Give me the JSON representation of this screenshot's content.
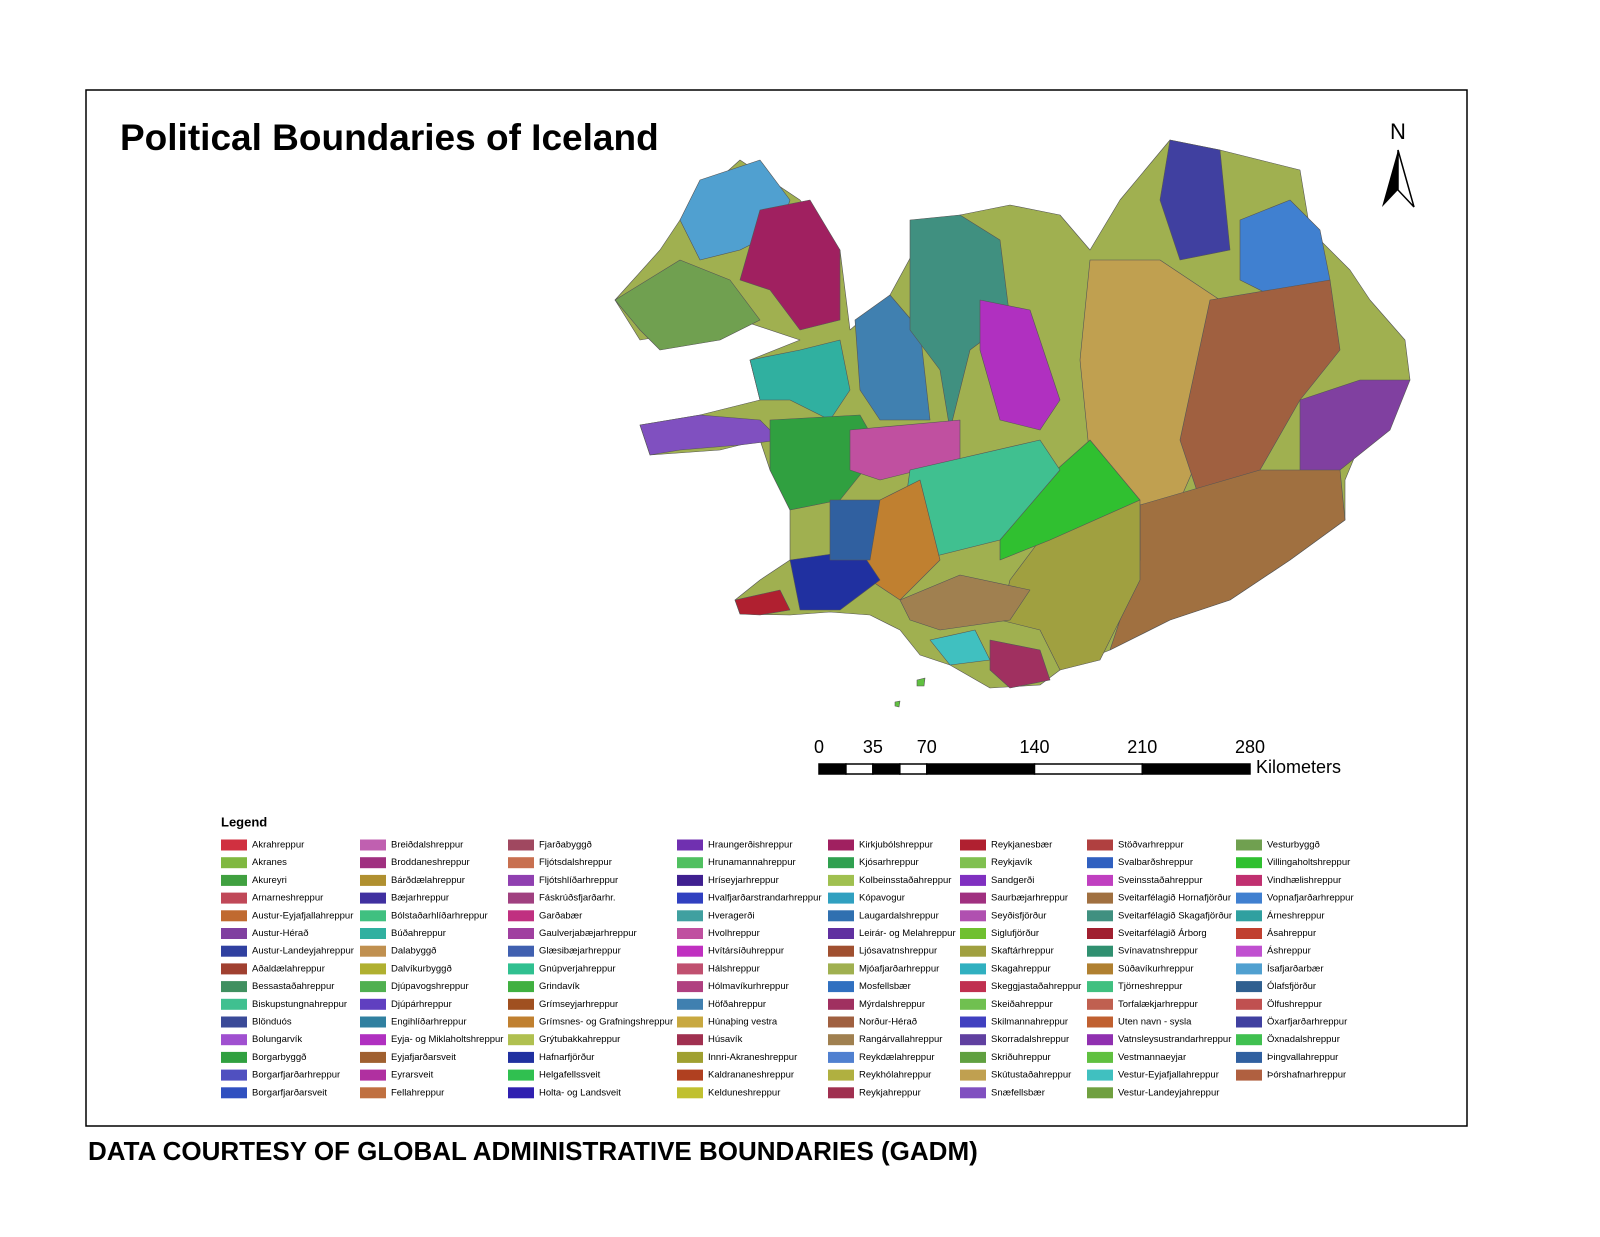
{
  "title": "Political Boundaries of Iceland",
  "north_label": "N",
  "scale_bar": {
    "ticks": [
      0,
      35,
      70,
      140,
      210,
      280
    ],
    "unit": "Kilometers"
  },
  "legend": {
    "title": "Legend",
    "items": [
      {
        "name": "Akrahreppur",
        "color": "#d03040"
      },
      {
        "name": "Akranes",
        "color": "#80b840"
      },
      {
        "name": "Akureyri",
        "color": "#40a040"
      },
      {
        "name": "Arnarneshreppur",
        "color": "#c04858"
      },
      {
        "name": "Austur-Eyjafjallahreppur",
        "color": "#c06a30"
      },
      {
        "name": "Austur-Hérað",
        "color": "#8040a0"
      },
      {
        "name": "Austur-Landeyjahreppur",
        "color": "#3040a0"
      },
      {
        "name": "Aðaldælahreppur",
        "color": "#a04030"
      },
      {
        "name": "Bessastaðahreppur",
        "color": "#409060"
      },
      {
        "name": "Biskupstungnahreppur",
        "color": "#40c090"
      },
      {
        "name": "Blönduós",
        "color": "#3a4a98"
      },
      {
        "name": "Bolungarvík",
        "color": "#a050d0"
      },
      {
        "name": "Borgarbyggð",
        "color": "#30a040"
      },
      {
        "name": "Borgarfjarðarhreppur",
        "color": "#5050c0"
      },
      {
        "name": "Borgarfjarðarsveit",
        "color": "#3050c0"
      },
      {
        "name": "Breiðdalshreppur",
        "color": "#c060b0"
      },
      {
        "name": "Broddaneshreppur",
        "color": "#a03080"
      },
      {
        "name": "Bárðdælahreppur",
        "color": "#b09030"
      },
      {
        "name": "Bæjarhreppur",
        "color": "#4030a0"
      },
      {
        "name": "Bólstaðarhlíðarhreppur",
        "color": "#40c080"
      },
      {
        "name": "Búðahreppur",
        "color": "#30b0a0"
      },
      {
        "name": "Dalabyggð",
        "color": "#c09050"
      },
      {
        "name": "Dalvíkurbyggð",
        "color": "#b0b030"
      },
      {
        "name": "Djúpavogshreppur",
        "color": "#50b050"
      },
      {
        "name": "Djúpárhreppur",
        "color": "#6040c0"
      },
      {
        "name": "Engihlíðarhreppur",
        "color": "#3080a0"
      },
      {
        "name": "Eyja- og Miklaholtshreppur",
        "color": "#b030c0"
      },
      {
        "name": "Eyjafjarðarsveit",
        "color": "#a06030"
      },
      {
        "name": "Eyrarsveit",
        "color": "#b030a0"
      },
      {
        "name": "Fellahreppur",
        "color": "#c07040"
      },
      {
        "name": "Fjarðabyggð",
        "color": "#a04860"
      },
      {
        "name": "Fljótsdalshreppur",
        "color": "#c87050"
      },
      {
        "name": "Fljótshlíðarhreppur",
        "color": "#9040b0"
      },
      {
        "name": "Fáskrúðsfjarðarhr.",
        "color": "#a04080"
      },
      {
        "name": "Garðabær",
        "color": "#c03080"
      },
      {
        "name": "Gaulverjabæjarhreppur",
        "color": "#a040a0"
      },
      {
        "name": "Glæsibæjarhreppur",
        "color": "#4060b0"
      },
      {
        "name": "Gnúpverjahreppur",
        "color": "#30c090"
      },
      {
        "name": "Grindavík",
        "color": "#40b040"
      },
      {
        "name": "Grímseyjarhreppur",
        "color": "#a05020"
      },
      {
        "name": "Grímsnes- og Grafningshreppur",
        "color": "#c08030"
      },
      {
        "name": "Grýtubakkahreppur",
        "color": "#b0c050"
      },
      {
        "name": "Hafnarfjörður",
        "color": "#2030a0"
      },
      {
        "name": "Helgafellssveit",
        "color": "#30c050"
      },
      {
        "name": "Holta- og Landsveit",
        "color": "#3020b0"
      },
      {
        "name": "Hraungerðishreppur",
        "color": "#7030b0"
      },
      {
        "name": "Hrunamannahreppur",
        "color": "#50c060"
      },
      {
        "name": "Hríseyjarhreppur",
        "color": "#402090"
      },
      {
        "name": "Hvalfjarðarstrandarhreppur",
        "color": "#3040c0"
      },
      {
        "name": "Hveragerði",
        "color": "#40a0a0"
      },
      {
        "name": "Hvolhreppur",
        "color": "#c050a0"
      },
      {
        "name": "Hvítársíðuhreppur",
        "color": "#c030c0"
      },
      {
        "name": "Hálshreppur",
        "color": "#c05070"
      },
      {
        "name": "Hólmavíkurhreppur",
        "color": "#b04080"
      },
      {
        "name": "Höfðahreppur",
        "color": "#4080b0"
      },
      {
        "name": "Húnaþing vestra",
        "color": "#c8a840"
      },
      {
        "name": "Húsavík",
        "color": "#a03050"
      },
      {
        "name": "Innri-Akraneshreppur",
        "color": "#a0a030"
      },
      {
        "name": "Kaldrananeshreppur",
        "color": "#b04020"
      },
      {
        "name": "Kelduneshreppur",
        "color": "#c0c030"
      },
      {
        "name": "Kirkjubólshreppur",
        "color": "#a02060"
      },
      {
        "name": "Kjósarhreppur",
        "color": "#30a050"
      },
      {
        "name": "Kolbeinsstaðahreppur",
        "color": "#a0c050"
      },
      {
        "name": "Kópavogur",
        "color": "#30a0c0"
      },
      {
        "name": "Laugardalshreppur",
        "color": "#3070b0"
      },
      {
        "name": "Leirár- og Melahreppur",
        "color": "#6030a0"
      },
      {
        "name": "Ljósavatnshreppur",
        "color": "#a05030"
      },
      {
        "name": "Mjóafjarðarhreppur",
        "color": "#a0b050"
      },
      {
        "name": "Mosfellsbær",
        "color": "#3070c0"
      },
      {
        "name": "Mýrdalshreppur",
        "color": "#a03060"
      },
      {
        "name": "Norður-Hérað",
        "color": "#a06040"
      },
      {
        "name": "Rangárvallahreppur",
        "color": "#a08050"
      },
      {
        "name": "Reykdælahreppur",
        "color": "#5080d0"
      },
      {
        "name": "Reykhólahreppur",
        "color": "#b0b040"
      },
      {
        "name": "Reykjahreppur",
        "color": "#a03050"
      },
      {
        "name": "Reykjanesbær",
        "color": "#b02030"
      },
      {
        "name": "Reykjavík",
        "color": "#80c050"
      },
      {
        "name": "Sandgerði",
        "color": "#8030c0"
      },
      {
        "name": "Saurbæjarhreppur",
        "color": "#a03080"
      },
      {
        "name": "Seyðisfjörður",
        "color": "#b050b0"
      },
      {
        "name": "Siglufjörður",
        "color": "#70c030"
      },
      {
        "name": "Skaftárhreppur",
        "color": "#a0a040"
      },
      {
        "name": "Skagahreppur",
        "color": "#30b0c0"
      },
      {
        "name": "Skeggjastaðahreppur",
        "color": "#c03050"
      },
      {
        "name": "Skeiðahreppur",
        "color": "#70c050"
      },
      {
        "name": "Skilmannahreppur",
        "color": "#4040c0"
      },
      {
        "name": "Skorradalshreppur",
        "color": "#6040a0"
      },
      {
        "name": "Skriðuhreppur",
        "color": "#60a040"
      },
      {
        "name": "Skútustaðahreppur",
        "color": "#c0a050"
      },
      {
        "name": "Snæfellsbær",
        "color": "#8050c0"
      },
      {
        "name": "Stöðvarhreppur",
        "color": "#b04040"
      },
      {
        "name": "Svalbarðshreppur",
        "color": "#3060c0"
      },
      {
        "name": "Sveinsstaðahreppur",
        "color": "#c040c0"
      },
      {
        "name": "Sveitarfélagið Hornafjörður",
        "color": "#a07040"
      },
      {
        "name": "Sveitarfélagið Skagafjörður",
        "color": "#409080"
      },
      {
        "name": "Sveitarfélagið Árborg",
        "color": "#a02030"
      },
      {
        "name": "Svínavatnshreppur",
        "color": "#309070"
      },
      {
        "name": "Súðavíkurhreppur",
        "color": "#b08030"
      },
      {
        "name": "Tjörneshreppur",
        "color": "#40c080"
      },
      {
        "name": "Torfalækjarhreppur",
        "color": "#c06050"
      },
      {
        "name": "Uten navn - sysla",
        "color": "#c06030"
      },
      {
        "name": "Vatnsleysustrandarhreppur",
        "color": "#9030b0"
      },
      {
        "name": "Vestmannaeyjar",
        "color": "#60c040"
      },
      {
        "name": "Vestur-Eyjafjallahreppur",
        "color": "#40c0c0"
      },
      {
        "name": "Vestur-Landeyjahreppur",
        "color": "#70a040"
      },
      {
        "name": "Vesturbyggð",
        "color": "#70a050"
      },
      {
        "name": "Villingaholtshreppur",
        "color": "#30c030"
      },
      {
        "name": "Vindhælishreppur",
        "color": "#c03070"
      },
      {
        "name": "Vopnafjarðarhreppur",
        "color": "#4080d0"
      },
      {
        "name": "Árneshreppur",
        "color": "#30a0a0"
      },
      {
        "name": "Ásahreppur",
        "color": "#c04030"
      },
      {
        "name": "Áshreppur",
        "color": "#c050d0"
      },
      {
        "name": "Ísafjarðarbær",
        "color": "#50a0d0"
      },
      {
        "name": "Ólafsfjörður",
        "color": "#306090"
      },
      {
        "name": "Ölfushreppur",
        "color": "#c05050"
      },
      {
        "name": "Öxarfjarðarhreppur",
        "color": "#4040a0"
      },
      {
        "name": "Öxnadalshreppur",
        "color": "#40c050"
      },
      {
        "name": "Þingvallahreppur",
        "color": "#3060a0"
      },
      {
        "name": "Þórshafnarhreppur",
        "color": "#b06040"
      }
    ]
  },
  "footer": "DATA COURTESY OF GLOBAL ADMINISTRATIVE BOUNDARIES (GADM)"
}
